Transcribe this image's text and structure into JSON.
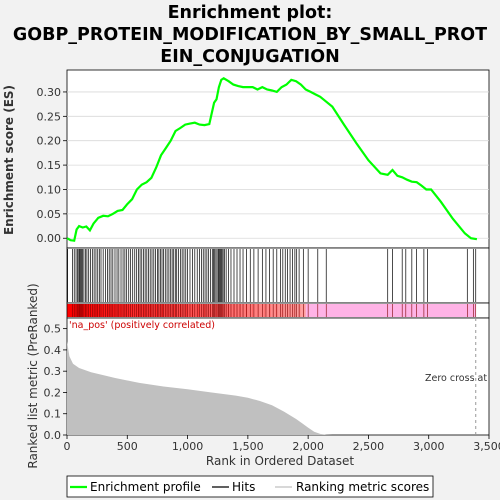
{
  "chart_data": {
    "type": "line",
    "title_lines": [
      "Enrichment plot:",
      "GOBP_PROTEIN_MODIFICATION_BY_SMALL_PROT",
      "EIN_CONJUGATION"
    ],
    "panels": {
      "enrichment": {
        "ylabel": "Enrichment score (ES)",
        "ylim": [
          -0.02,
          0.345
        ],
        "yticks": [
          0.0,
          0.05,
          0.1,
          0.15,
          0.2,
          0.25,
          0.3
        ],
        "ytick_labels": [
          "0.00",
          "0.05",
          "0.10",
          "0.15",
          "0.20",
          "0.25",
          "0.30"
        ],
        "series": [
          {
            "name": "Enrichment profile",
            "color": "#00ff00",
            "x": [
              0,
              30,
              60,
              80,
              100,
              130,
              160,
              190,
              220,
              260,
              300,
              340,
              380,
              420,
              460,
              500,
              540,
              580,
              620,
              660,
              700,
              740,
              780,
              820,
              860,
              900,
              940,
              980,
              1020,
              1060,
              1100,
              1140,
              1180,
              1220,
              1240,
              1260,
              1280,
              1300,
              1340,
              1380,
              1420,
              1460,
              1500,
              1540,
              1580,
              1620,
              1660,
              1700,
              1740,
              1780,
              1820,
              1860,
              1900,
              1940,
              1980,
              2020,
              2060,
              2100,
              2140,
              2200,
              2300,
              2400,
              2500,
              2600,
              2660,
              2700,
              2740,
              2780,
              2820,
              2860,
              2900,
              2940,
              2980,
              3020,
              3100,
              3200,
              3300,
              3350,
              3400
            ],
            "y": [
              0.0,
              -0.004,
              -0.005,
              0.018,
              0.025,
              0.022,
              0.024,
              0.016,
              0.03,
              0.042,
              0.046,
              0.045,
              0.05,
              0.056,
              0.058,
              0.07,
              0.08,
              0.1,
              0.11,
              0.115,
              0.124,
              0.145,
              0.17,
              0.185,
              0.2,
              0.22,
              0.226,
              0.233,
              0.235,
              0.237,
              0.233,
              0.232,
              0.234,
              0.278,
              0.285,
              0.31,
              0.325,
              0.328,
              0.322,
              0.315,
              0.312,
              0.31,
              0.31,
              0.31,
              0.305,
              0.31,
              0.305,
              0.303,
              0.3,
              0.31,
              0.315,
              0.325,
              0.322,
              0.315,
              0.305,
              0.3,
              0.295,
              0.29,
              0.282,
              0.27,
              0.232,
              0.195,
              0.16,
              0.133,
              0.13,
              0.14,
              0.128,
              0.125,
              0.12,
              0.116,
              0.115,
              0.108,
              0.1,
              0.1,
              0.075,
              0.04,
              0.01,
              0.0,
              -0.002
            ]
          }
        ]
      },
      "hits": {
        "name": "Hits",
        "positions": [
          5,
          45,
          60,
          75,
          88,
          98,
          105,
          112,
          120,
          128,
          140,
          152,
          165,
          180,
          195,
          210,
          225,
          240,
          255,
          268,
          282,
          300,
          318,
          336,
          350,
          365,
          380,
          398,
          415,
          430,
          448,
          465,
          480,
          495,
          512,
          528,
          545,
          562,
          578,
          592,
          606,
          620,
          634,
          648,
          662,
          676,
          690,
          705,
          720,
          735,
          750,
          762,
          775,
          788,
          800,
          815,
          830,
          845,
          860,
          872,
          885,
          898,
          910,
          925,
          940,
          955,
          970,
          985,
          1000,
          1020,
          1040,
          1060,
          1080,
          1100,
          1115,
          1130,
          1145,
          1160,
          1175,
          1190,
          1205,
          1215,
          1225,
          1235,
          1245,
          1255,
          1262,
          1270,
          1278,
          1286,
          1295,
          1305,
          1320,
          1340,
          1360,
          1385,
          1410,
          1435,
          1460,
          1490,
          1520,
          1550,
          1585,
          1620,
          1650,
          1680,
          1710,
          1740,
          1770,
          1790,
          1810,
          1830,
          1850,
          1870,
          1890,
          1905,
          1925,
          1960,
          2000,
          2080,
          2150,
          2660,
          2700,
          2780,
          2810,
          2860,
          2900,
          2960,
          2990,
          3320,
          3370,
          3390
        ]
      },
      "ranked_metric": {
        "ylabel": "Ranked list metric (PreRanked)",
        "xlabel": "Rank in Ordered Dataset",
        "ylim": [
          0.0,
          0.55
        ],
        "yticks": [
          0.0,
          0.1,
          0.2,
          0.3,
          0.4,
          0.5
        ],
        "ytick_labels": [
          "0.0",
          "0.1",
          "0.2",
          "0.3",
          "0.4",
          "0.5"
        ],
        "xlim": [
          0,
          3500
        ],
        "xticks": [
          0,
          500,
          1000,
          1500,
          2000,
          2500,
          3000,
          3500
        ],
        "xtick_labels": [
          "0",
          "500",
          "1,000",
          "1,500",
          "2,000",
          "2,500",
          "3,000",
          "3,500"
        ],
        "x": [
          0,
          20,
          50,
          100,
          200,
          400,
          600,
          800,
          1000,
          1200,
          1400,
          1500,
          1600,
          1700,
          1800,
          1900,
          1950,
          2000,
          2050,
          2100,
          2150,
          2200,
          2400,
          2800,
          3400
        ],
        "y": [
          0.44,
          0.37,
          0.335,
          0.315,
          0.295,
          0.268,
          0.245,
          0.228,
          0.215,
          0.2,
          0.185,
          0.175,
          0.16,
          0.14,
          0.11,
          0.075,
          0.055,
          0.035,
          0.015,
          0.005,
          0.001,
          0.0,
          0.0,
          0.0,
          0.0
        ],
        "fill_color": "#c0c0c0",
        "zero_cross_x": 3390,
        "zero_cross_label": "Zero cross at",
        "pos_label": "'na_pos' (positively correlated)"
      }
    },
    "legend": {
      "entries": [
        {
          "label": "Enrichment profile",
          "color": "#00ff00"
        },
        {
          "label": "Hits",
          "color": "#000000"
        },
        {
          "label": "Ranking metric scores",
          "color": "#c0c0c0"
        }
      ],
      "placement": "bottom"
    },
    "colors": {
      "positive_band": "#ff0000",
      "negative_band": "#ffb3e6",
      "grid": "#d9d9d9"
    }
  }
}
